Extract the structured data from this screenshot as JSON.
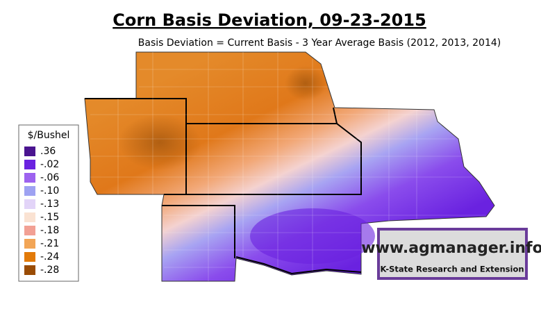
{
  "title": "Corn Basis Deviation, 09-23-2015",
  "subtitle": "Basis Deviation = Current Basis - 3 Year Average Basis (2012, 2013, 2014)",
  "legend": {
    "title": "$/Bushel",
    "items": [
      {
        "label": ".36",
        "color": "#4a1490"
      },
      {
        "label": "-.02",
        "color": "#6a22e0"
      },
      {
        "label": "-.06",
        "color": "#9d62ef"
      },
      {
        "label": "-.10",
        "color": "#9ea2f2"
      },
      {
        "label": "-.13",
        "color": "#e2d4f8"
      },
      {
        "label": "-.15",
        "color": "#fae2d2"
      },
      {
        "label": "-.18",
        "color": "#f2a094"
      },
      {
        "label": "-.21",
        "color": "#f2a556"
      },
      {
        "label": "-.24",
        "color": "#e27a08"
      },
      {
        "label": "-.28",
        "color": "#9a4c04"
      }
    ]
  },
  "logo": {
    "url": "www.agmanager.info",
    "org": "K-State Research and Extension"
  }
}
